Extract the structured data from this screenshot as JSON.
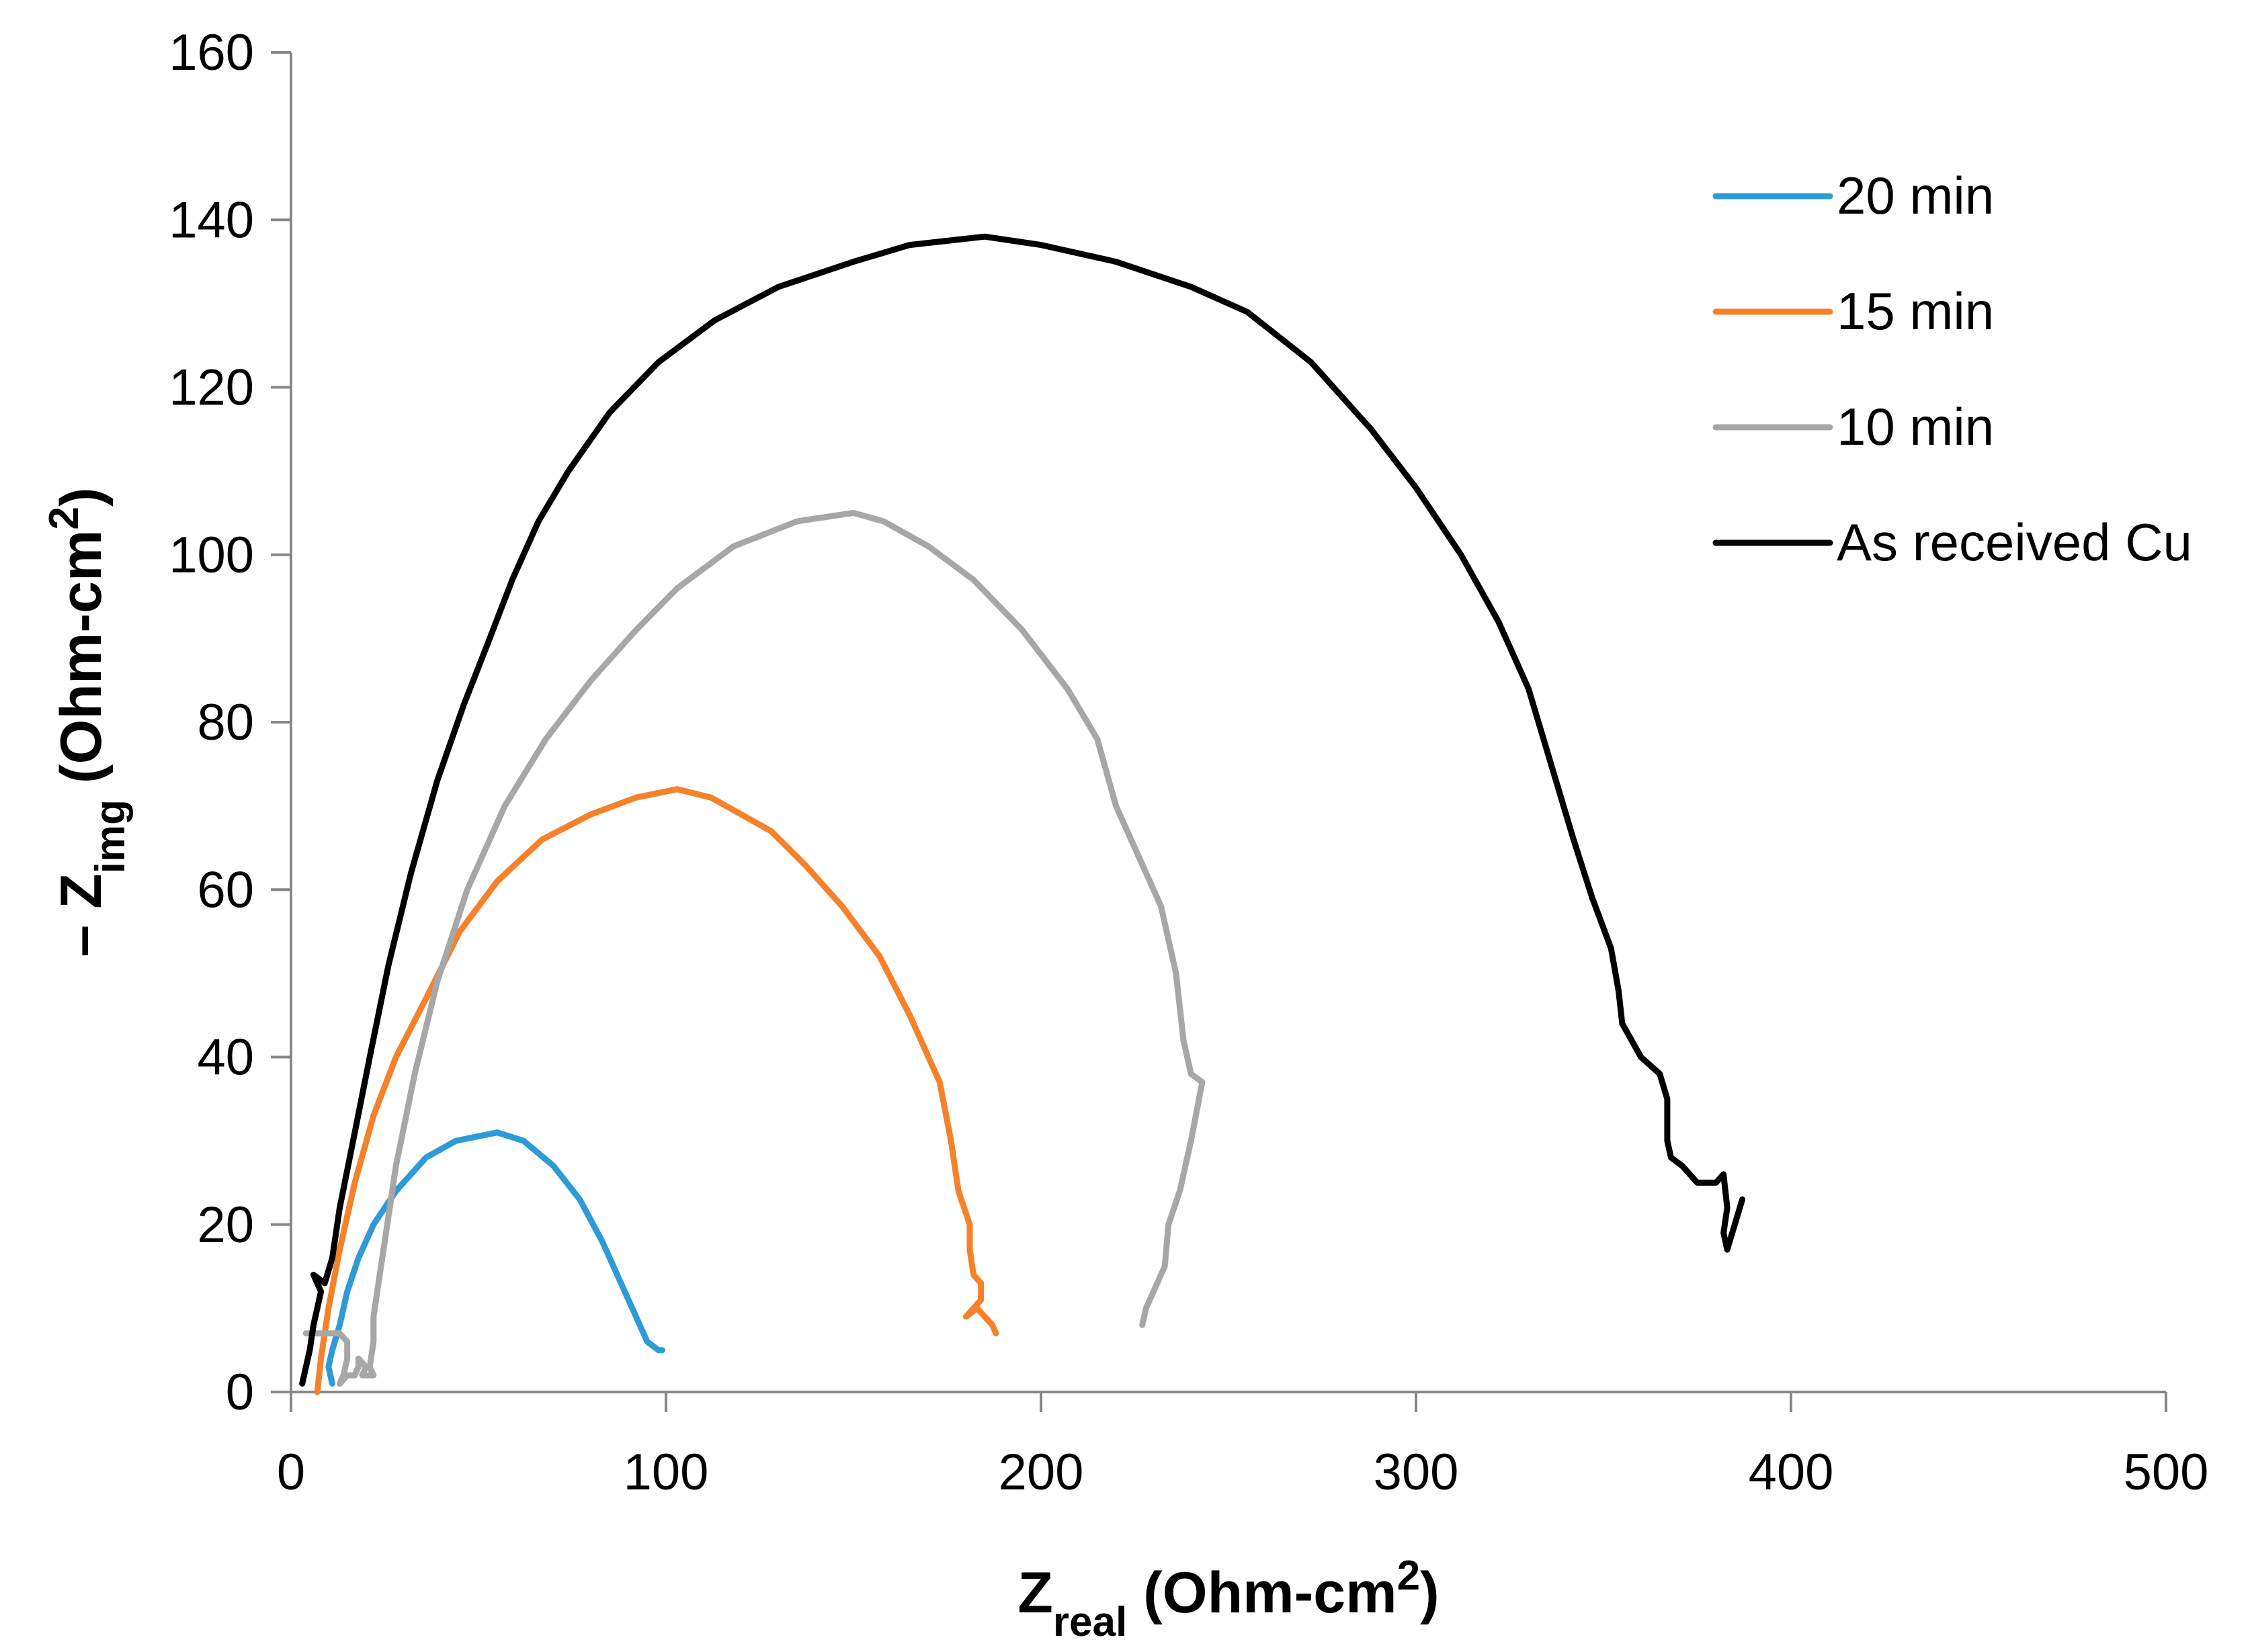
{
  "chart_data": {
    "type": "line",
    "title": "",
    "xlabel": {
      "main": "Z",
      "sub": "real",
      "rest": " (Ohm-cm",
      "sup": "2",
      "end": ")"
    },
    "ylabel": {
      "prefix": "– Z",
      "sub": "img",
      "rest": " (Ohm-cm",
      "sup": "2",
      "end": ")"
    },
    "xlim": [
      0,
      500
    ],
    "ylim": [
      0,
      160
    ],
    "xticks": [
      "0",
      "100",
      "200",
      "300",
      "400",
      "500"
    ],
    "yticks": [
      "0",
      "20",
      "40",
      "60",
      "80",
      "100",
      "120",
      "140",
      "160"
    ],
    "grid": false,
    "legend_position": "top-right",
    "series": [
      {
        "name": "20 min",
        "color": "#2e9bd6",
        "points": [
          [
            11,
            1
          ],
          [
            10,
            3
          ],
          [
            11,
            5
          ],
          [
            13,
            8
          ],
          [
            15,
            12
          ],
          [
            18,
            16
          ],
          [
            22,
            20
          ],
          [
            28,
            24
          ],
          [
            36,
            28
          ],
          [
            44,
            30
          ],
          [
            55,
            31
          ],
          [
            62,
            30
          ],
          [
            70,
            27
          ],
          [
            77,
            23
          ],
          [
            83,
            18
          ],
          [
            88,
            13
          ],
          [
            92,
            9
          ],
          [
            95,
            6
          ],
          [
            98,
            5
          ],
          [
            99,
            5
          ]
        ]
      },
      {
        "name": "15 min",
        "color": "#f5822a",
        "points": [
          [
            7,
            0
          ],
          [
            8,
            4
          ],
          [
            10,
            10
          ],
          [
            13,
            17
          ],
          [
            17,
            25
          ],
          [
            22,
            33
          ],
          [
            28,
            40
          ],
          [
            36,
            47
          ],
          [
            45,
            55
          ],
          [
            55,
            61
          ],
          [
            67,
            66
          ],
          [
            80,
            69
          ],
          [
            92,
            71
          ],
          [
            103,
            72
          ],
          [
            112,
            71
          ],
          [
            120,
            69
          ],
          [
            128,
            67
          ],
          [
            137,
            63
          ],
          [
            147,
            58
          ],
          [
            157,
            52
          ],
          [
            165,
            45
          ],
          [
            173,
            37
          ],
          [
            176,
            30
          ],
          [
            178,
            24
          ],
          [
            181,
            20
          ],
          [
            181,
            17
          ],
          [
            182,
            14
          ],
          [
            184,
            13
          ],
          [
            184,
            11
          ],
          [
            182,
            10
          ],
          [
            180,
            9
          ],
          [
            183,
            10
          ],
          [
            185,
            9
          ],
          [
            187,
            8
          ],
          [
            188,
            7
          ]
        ]
      },
      {
        "name": "10 min",
        "color": "#a7a7a7",
        "points": [
          [
            4,
            7
          ],
          [
            9,
            7
          ],
          [
            13,
            7
          ],
          [
            15,
            6
          ],
          [
            15,
            4
          ],
          [
            14,
            2
          ],
          [
            13,
            1
          ],
          [
            15,
            2
          ],
          [
            17,
            2
          ],
          [
            18,
            3
          ],
          [
            18,
            4
          ],
          [
            20,
            3
          ],
          [
            19,
            2
          ],
          [
            22,
            2
          ],
          [
            21,
            3
          ],
          [
            22,
            6
          ],
          [
            22,
            9
          ],
          [
            23,
            12
          ],
          [
            25,
            18
          ],
          [
            28,
            27
          ],
          [
            33,
            38
          ],
          [
            39,
            49
          ],
          [
            47,
            60
          ],
          [
            57,
            70
          ],
          [
            68,
            78
          ],
          [
            80,
            85
          ],
          [
            92,
            91
          ],
          [
            103,
            96
          ],
          [
            118,
            101
          ],
          [
            135,
            104
          ],
          [
            150,
            105
          ],
          [
            158,
            104
          ],
          [
            170,
            101
          ],
          [
            182,
            97
          ],
          [
            195,
            91
          ],
          [
            207,
            84
          ],
          [
            215,
            78
          ],
          [
            220,
            70
          ],
          [
            226,
            64
          ],
          [
            232,
            58
          ],
          [
            236,
            50
          ],
          [
            238,
            42
          ],
          [
            240,
            38
          ],
          [
            243,
            37
          ],
          [
            240,
            30
          ],
          [
            237,
            24
          ],
          [
            234,
            20
          ],
          [
            233,
            15
          ],
          [
            230,
            12
          ],
          [
            228,
            10
          ],
          [
            227,
            8
          ]
        ]
      },
      {
        "name": "As received Cu",
        "color": "#000000",
        "points": [
          [
            3,
            1
          ],
          [
            4,
            3
          ],
          [
            5,
            5
          ],
          [
            6,
            8
          ],
          [
            7,
            10
          ],
          [
            8,
            12
          ],
          [
            6,
            14
          ],
          [
            9,
            13
          ],
          [
            11,
            16
          ],
          [
            13,
            22
          ],
          [
            17,
            31
          ],
          [
            21,
            40
          ],
          [
            26,
            51
          ],
          [
            32,
            62
          ],
          [
            39,
            73
          ],
          [
            46,
            82
          ],
          [
            53,
            90
          ],
          [
            59,
            97
          ],
          [
            66,
            104
          ],
          [
            74,
            110
          ],
          [
            85,
            117
          ],
          [
            98,
            123
          ],
          [
            113,
            128
          ],
          [
            130,
            132
          ],
          [
            150,
            135
          ],
          [
            165,
            137
          ],
          [
            185,
            138
          ],
          [
            200,
            137
          ],
          [
            220,
            135
          ],
          [
            240,
            132
          ],
          [
            255,
            129
          ],
          [
            272,
            123
          ],
          [
            288,
            115
          ],
          [
            300,
            108
          ],
          [
            312,
            100
          ],
          [
            322,
            92
          ],
          [
            330,
            84
          ],
          [
            336,
            75
          ],
          [
            342,
            66
          ],
          [
            347,
            59
          ],
          [
            352,
            53
          ],
          [
            354,
            48
          ],
          [
            355,
            44
          ],
          [
            360,
            40
          ],
          [
            365,
            38
          ],
          [
            367,
            35
          ],
          [
            367,
            30
          ],
          [
            368,
            28
          ],
          [
            371,
            27
          ],
          [
            375,
            25
          ],
          [
            380,
            25
          ],
          [
            382,
            26
          ],
          [
            383,
            22
          ],
          [
            382,
            19
          ],
          [
            383,
            17
          ],
          [
            385,
            20
          ],
          [
            387,
            23
          ]
        ]
      }
    ]
  }
}
